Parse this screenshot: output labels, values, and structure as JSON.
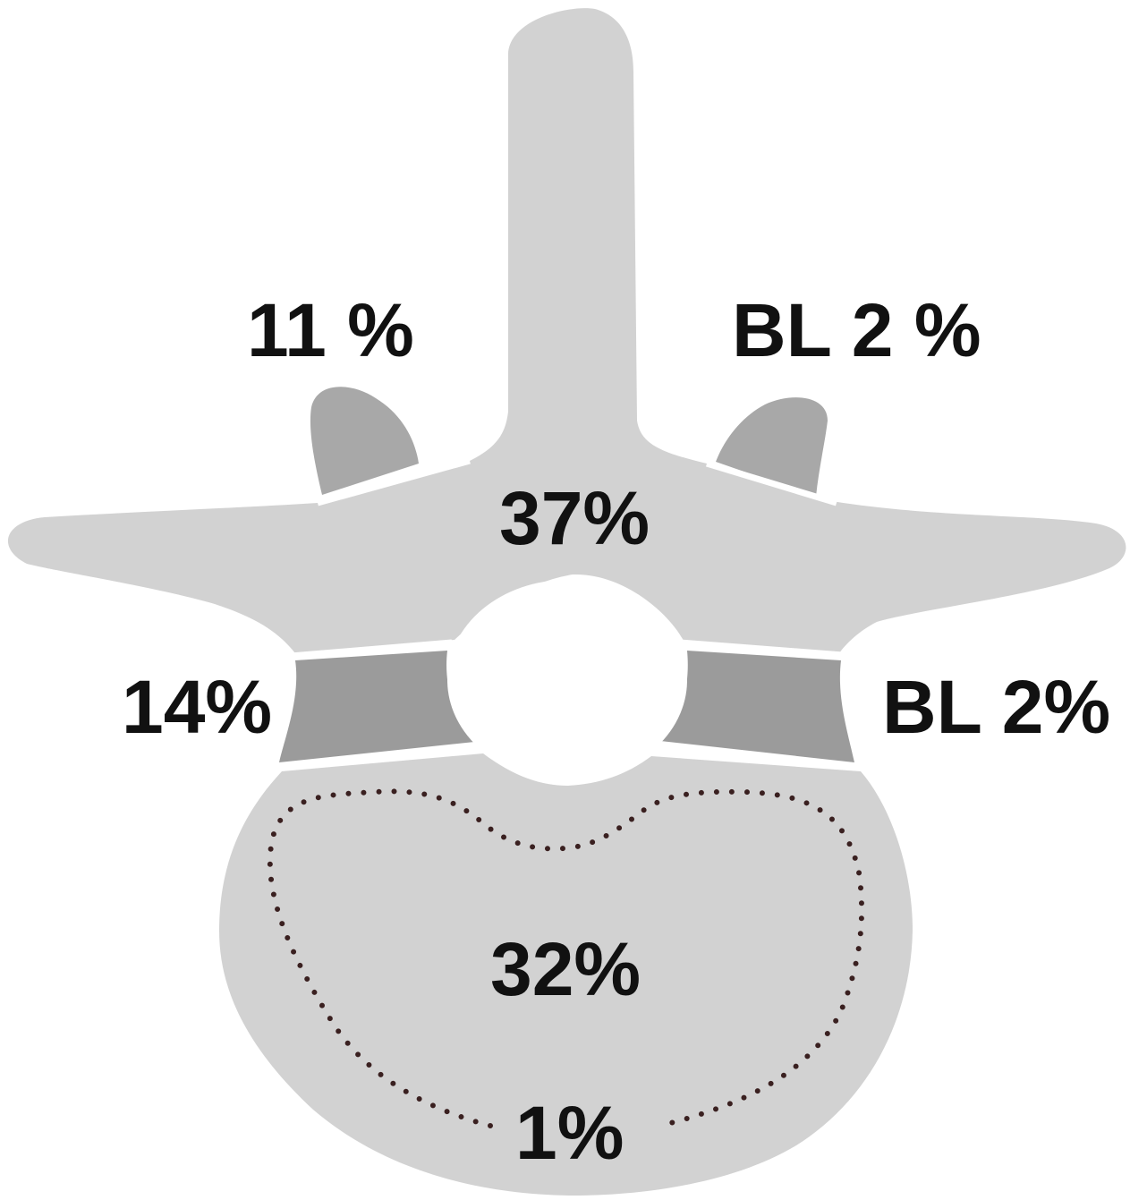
{
  "colors": {
    "light_region": "#d2d2d2",
    "dark_region": "#a8a8a8",
    "pedicle_region": "#9b9b9b",
    "dotted_line": "#3a2020",
    "background": "#ffffff",
    "text": "#111111"
  },
  "labels": {
    "left_facet": "11 %",
    "right_facet": "BL 2 %",
    "posterior_arch": "37%",
    "left_pedicle": "14%",
    "right_pedicle": "BL 2%",
    "vertebral_body": "32%",
    "anterior_rim": "1%"
  }
}
